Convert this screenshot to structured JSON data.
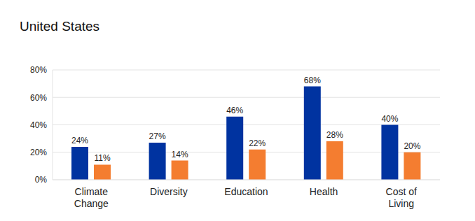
{
  "chart_data": {
    "type": "bar",
    "title": "United States",
    "categories": [
      "Climate Change",
      "Diversity",
      "Education",
      "Health",
      "Cost of Living"
    ],
    "series": [
      {
        "color": "#0033a0",
        "values": [
          24,
          27,
          46,
          68,
          40
        ],
        "value_labels": [
          "24%",
          "27%",
          "46%",
          "68%",
          "40%"
        ]
      },
      {
        "color": "#f47d30",
        "values": [
          11,
          14,
          22,
          28,
          20
        ],
        "value_labels": [
          "11%",
          "14%",
          "22%",
          "28%",
          "20%"
        ]
      }
    ],
    "ylim": [
      0,
      80
    ],
    "yticks": [
      {
        "value": 0,
        "label": "0%"
      },
      {
        "value": 20,
        "label": "20%"
      },
      {
        "value": 40,
        "label": "40%"
      },
      {
        "value": 60,
        "label": "60%"
      },
      {
        "value": 80,
        "label": "80%"
      }
    ],
    "grid": true,
    "data_labels": true
  }
}
